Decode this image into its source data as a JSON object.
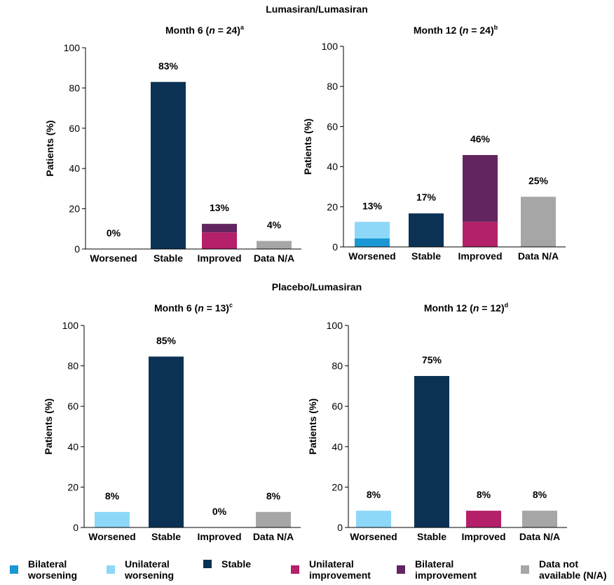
{
  "headings": [
    "Lumasiran/Lumasiran",
    "Placebo/Lumasiran"
  ],
  "legend": [
    {
      "name": "Bilateral worsening",
      "color": "#1b97d5"
    },
    {
      "name": "Unilateral worsening",
      "color": "#8dd8f8"
    },
    {
      "name": "Stable",
      "color": "#0b3254"
    },
    {
      "name": "Unilateral improvement",
      "color": "#b4206a"
    },
    {
      "name": "Bilateral improvement",
      "color": "#63255f"
    },
    {
      "name": "Data not available (N/A)",
      "color": "#a6a6a6"
    }
  ],
  "chart_data": [
    {
      "type": "bar",
      "stacked": true,
      "title_parts": [
        "Month 6 (",
        "n",
        " = 24)",
        "a"
      ],
      "ylabel": "Patients (%)",
      "categories": [
        "Worsened",
        "Stable",
        "Improved",
        "Data N/A"
      ],
      "series": [
        {
          "values": [
            0,
            0,
            0,
            0
          ]
        },
        {
          "values": [
            0,
            0,
            0,
            0
          ]
        },
        {
          "values": [
            0,
            83,
            0,
            0
          ]
        },
        {
          "values": [
            0,
            0,
            8.3,
            0
          ]
        },
        {
          "values": [
            0,
            0,
            4.2,
            0
          ]
        },
        {
          "values": [
            0,
            0,
            0,
            4
          ]
        }
      ],
      "totals": {
        "values": [
          0,
          83,
          13,
          4
        ],
        "value_labels": [
          "0%",
          "83%",
          "13%",
          "4%"
        ]
      },
      "ylim": [
        0,
        100
      ],
      "yticks": [
        0,
        20,
        40,
        60,
        80,
        100
      ]
    },
    {
      "type": "bar",
      "stacked": true,
      "title_parts": [
        "Month 12 (",
        "n",
        " = 24)",
        "b"
      ],
      "ylabel": "Patients (%)",
      "categories": [
        "Worsened",
        "Stable",
        "Improved",
        "Data N/A"
      ],
      "series": [
        {
          "values": [
            4.2,
            0,
            0,
            0
          ]
        },
        {
          "values": [
            8.3,
            0,
            0,
            0
          ]
        },
        {
          "values": [
            0,
            16.7,
            0,
            0
          ]
        },
        {
          "values": [
            0,
            0,
            12.5,
            0
          ]
        },
        {
          "values": [
            0,
            0,
            33.3,
            0
          ]
        },
        {
          "values": [
            0,
            0,
            0,
            25
          ]
        }
      ],
      "totals": {
        "values": [
          13,
          17,
          46,
          25
        ],
        "value_labels": [
          "13%",
          "17%",
          "46%",
          "25%"
        ]
      },
      "ylim": [
        0,
        100
      ],
      "yticks": [
        0,
        20,
        40,
        60,
        80,
        100
      ]
    },
    {
      "type": "bar",
      "stacked": true,
      "title_parts": [
        "Month 6 (",
        "n",
        " = 13)",
        "c"
      ],
      "ylabel": "Patients (%)",
      "categories": [
        "Worsened",
        "Stable",
        "Improved",
        "Data N/A"
      ],
      "series": [
        {
          "values": [
            0,
            0,
            0,
            0
          ]
        },
        {
          "values": [
            7.7,
            0,
            0,
            0
          ]
        },
        {
          "values": [
            0,
            84.6,
            0,
            0
          ]
        },
        {
          "values": [
            0,
            0,
            0,
            0
          ]
        },
        {
          "values": [
            0,
            0,
            0,
            0
          ]
        },
        {
          "values": [
            0,
            0,
            0,
            7.7
          ]
        }
      ],
      "totals": {
        "values": [
          8,
          85,
          0,
          8
        ],
        "value_labels": [
          "8%",
          "85%",
          "0%",
          "8%"
        ]
      },
      "ylim": [
        0,
        100
      ],
      "yticks": [
        0,
        20,
        40,
        60,
        80,
        100
      ]
    },
    {
      "type": "bar",
      "stacked": true,
      "title_parts": [
        "Month 12 (",
        "n",
        " = 12)",
        "d"
      ],
      "ylabel": "Patients (%)",
      "categories": [
        "Worsened",
        "Stable",
        "Improved",
        "Data N/A"
      ],
      "series": [
        {
          "values": [
            0,
            0,
            0,
            0
          ]
        },
        {
          "values": [
            8.3,
            0,
            0,
            0
          ]
        },
        {
          "values": [
            0,
            75,
            0,
            0
          ]
        },
        {
          "values": [
            0,
            0,
            8.3,
            0
          ]
        },
        {
          "values": [
            0,
            0,
            0,
            0
          ]
        },
        {
          "values": [
            0,
            0,
            0,
            8.3
          ]
        }
      ],
      "totals": {
        "values": [
          8,
          75,
          8,
          8
        ],
        "value_labels": [
          "8%",
          "75%",
          "8%",
          "8%"
        ]
      },
      "ylim": [
        0,
        100
      ],
      "yticks": [
        0,
        20,
        40,
        60,
        80,
        100
      ]
    }
  ]
}
